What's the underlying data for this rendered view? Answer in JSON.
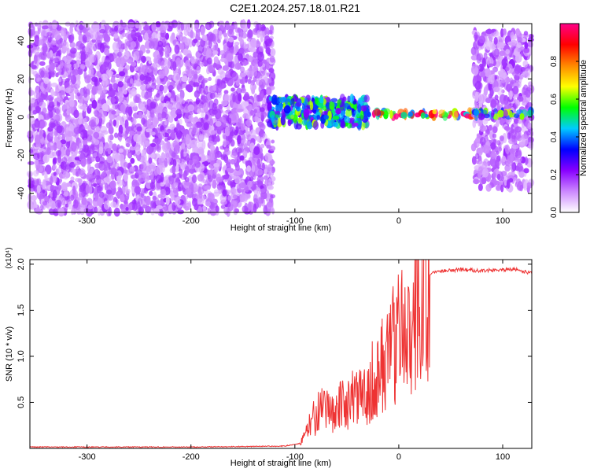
{
  "title": "C2E1.2024.257.18.01.R21",
  "chart_data": [
    {
      "type": "heatmap",
      "xlabel": "Height of straight line (km)",
      "ylabel": "Frequency (Hz)",
      "xlim": [
        -355,
        128
      ],
      "ylim": [
        -50,
        49
      ],
      "xticks": [
        -300,
        -200,
        -100,
        0,
        100
      ],
      "xtick_labels": [
        "-300",
        "-200",
        "-100",
        "0",
        "100"
      ],
      "yticks": [
        -40,
        -20,
        0,
        20,
        40
      ],
      "ytick_labels": [
        "-40",
        "-20",
        "0",
        "20",
        "40"
      ],
      "colorbar": {
        "label": "Normalized spectral amplitude",
        "range": [
          0.0,
          1.0
        ],
        "ticks": [
          0.0,
          0.2,
          0.4,
          0.6,
          0.8
        ],
        "tick_labels": [
          "0.0",
          "0.2",
          "0.4",
          "0.6",
          "0.8"
        ],
        "colors": [
          "#ffffff",
          "#cc88ff",
          "#8800ff",
          "#0000ff",
          "#00ccff",
          "#00ff00",
          "#ffff00",
          "#ff8800",
          "#ff0000",
          "#ff0088"
        ]
      },
      "regions": [
        {
          "x": [
            -355,
            -121
          ],
          "freq": [
            -50,
            49
          ],
          "amplitude": 0.15
        },
        {
          "x": [
            -125,
            -30
          ],
          "freq": [
            -5,
            10
          ],
          "amplitude": 0.5
        },
        {
          "x": [
            -30,
            75
          ],
          "freq": [
            0,
            3
          ],
          "amplitude": 0.9
        },
        {
          "x": [
            72,
            128
          ],
          "freq": [
            -38,
            45
          ],
          "amplitude": 0.15
        },
        {
          "x": [
            72,
            128
          ],
          "freq": [
            0,
            3
          ],
          "amplitude": 0.5
        }
      ]
    },
    {
      "type": "line",
      "xlabel": "Height of straight line (km)",
      "ylabel": "SNR (10 * v/v)",
      "y_multiplier": "(x10⁴)",
      "xlim": [
        -355,
        128
      ],
      "ylim": [
        0,
        2.05
      ],
      "xticks": [
        -300,
        -200,
        -100,
        0,
        100
      ],
      "xtick_labels": [
        "-300",
        "-200",
        "-100",
        "0",
        "100"
      ],
      "yticks": [
        0.5,
        1.0,
        1.5,
        2.0
      ],
      "ytick_labels": [
        "0.5",
        "1.0",
        "1.5",
        "2.0"
      ],
      "series": [
        {
          "color": "#ee3333",
          "x": [
            -355,
            -200,
            -110,
            -95,
            -90,
            -85,
            -80,
            -75,
            -70,
            -65,
            -60,
            -55,
            -50,
            -45,
            -40,
            -35,
            -30,
            -25,
            -20,
            -15,
            -10,
            -5,
            0,
            5,
            10,
            15,
            20,
            30,
            40,
            60,
            80,
            100,
            110,
            120,
            128
          ],
          "y": [
            0.01,
            0.01,
            0.02,
            0.05,
            0.15,
            0.3,
            0.4,
            0.45,
            0.4,
            0.5,
            0.45,
            0.5,
            0.55,
            0.6,
            0.55,
            0.6,
            0.7,
            0.8,
            0.9,
            1.0,
            1.1,
            1.25,
            1.4,
            1.5,
            1.6,
            1.7,
            1.8,
            1.9,
            1.93,
            1.94,
            1.93,
            1.94,
            1.95,
            1.92,
            1.9
          ]
        }
      ]
    }
  ]
}
